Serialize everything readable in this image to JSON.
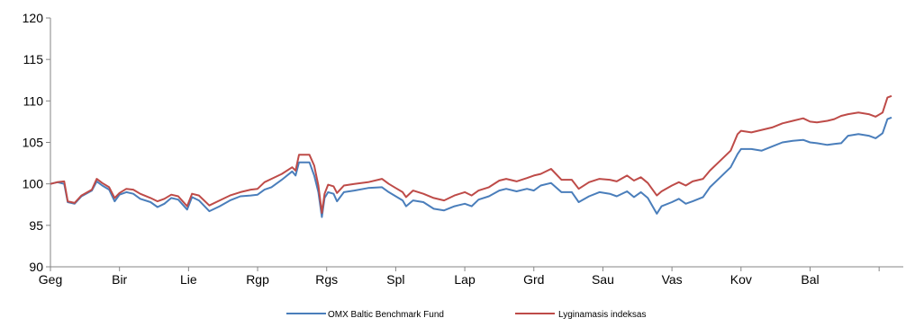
{
  "chart_data": {
    "type": "line",
    "ylim": [
      90,
      120
    ],
    "yticks": [
      90,
      95,
      100,
      105,
      110,
      115,
      120
    ],
    "categories": [
      "Geg",
      "Bir",
      "Lie",
      "Rgp",
      "Rgs",
      "Spl",
      "Lap",
      "Grd",
      "Sau",
      "Vas",
      "Kov",
      "Bal"
    ],
    "grid": false,
    "legend_position": "bottom",
    "series": [
      {
        "name": "OMX Baltic Benchmark Fund",
        "color": "#4a7ebb",
        "values": [
          [
            0.0,
            100.0
          ],
          [
            0.1,
            100.2
          ],
          [
            0.2,
            100.0
          ],
          [
            0.25,
            97.8
          ],
          [
            0.35,
            97.6
          ],
          [
            0.45,
            98.5
          ],
          [
            0.6,
            99.2
          ],
          [
            0.67,
            100.3
          ],
          [
            0.75,
            99.8
          ],
          [
            0.85,
            99.3
          ],
          [
            0.93,
            97.9
          ],
          [
            1.0,
            98.7
          ],
          [
            1.1,
            99.0
          ],
          [
            1.2,
            98.8
          ],
          [
            1.3,
            98.2
          ],
          [
            1.45,
            97.8
          ],
          [
            1.55,
            97.2
          ],
          [
            1.65,
            97.6
          ],
          [
            1.75,
            98.3
          ],
          [
            1.85,
            98.1
          ],
          [
            1.98,
            96.9
          ],
          [
            2.05,
            98.4
          ],
          [
            2.15,
            98.0
          ],
          [
            2.3,
            96.7
          ],
          [
            2.45,
            97.3
          ],
          [
            2.6,
            98.0
          ],
          [
            2.75,
            98.5
          ],
          [
            2.9,
            98.6
          ],
          [
            3.0,
            98.7
          ],
          [
            3.1,
            99.3
          ],
          [
            3.2,
            99.6
          ],
          [
            3.35,
            100.5
          ],
          [
            3.5,
            101.5
          ],
          [
            3.55,
            101.0
          ],
          [
            3.6,
            102.6
          ],
          [
            3.75,
            102.6
          ],
          [
            3.82,
            101.0
          ],
          [
            3.88,
            99.0
          ],
          [
            3.93,
            96.0
          ],
          [
            3.97,
            98.3
          ],
          [
            4.02,
            99.0
          ],
          [
            4.1,
            98.8
          ],
          [
            4.15,
            97.9
          ],
          [
            4.25,
            99.0
          ],
          [
            4.4,
            99.2
          ],
          [
            4.6,
            99.5
          ],
          [
            4.8,
            99.6
          ],
          [
            4.9,
            99.0
          ],
          [
            5.0,
            98.5
          ],
          [
            5.1,
            98.0
          ],
          [
            5.15,
            97.3
          ],
          [
            5.25,
            98.0
          ],
          [
            5.4,
            97.8
          ],
          [
            5.55,
            97.0
          ],
          [
            5.7,
            96.8
          ],
          [
            5.85,
            97.3
          ],
          [
            6.0,
            97.6
          ],
          [
            6.1,
            97.3
          ],
          [
            6.2,
            98.1
          ],
          [
            6.35,
            98.5
          ],
          [
            6.5,
            99.2
          ],
          [
            6.6,
            99.4
          ],
          [
            6.75,
            99.1
          ],
          [
            6.9,
            99.4
          ],
          [
            7.0,
            99.2
          ],
          [
            7.1,
            99.8
          ],
          [
            7.25,
            100.1
          ],
          [
            7.4,
            99.0
          ],
          [
            7.55,
            99.0
          ],
          [
            7.65,
            97.8
          ],
          [
            7.8,
            98.5
          ],
          [
            7.95,
            99.0
          ],
          [
            8.1,
            98.8
          ],
          [
            8.2,
            98.5
          ],
          [
            8.35,
            99.1
          ],
          [
            8.45,
            98.4
          ],
          [
            8.55,
            99.0
          ],
          [
            8.65,
            98.3
          ],
          [
            8.78,
            96.4
          ],
          [
            8.85,
            97.3
          ],
          [
            9.0,
            97.8
          ],
          [
            9.1,
            98.2
          ],
          [
            9.2,
            97.6
          ],
          [
            9.3,
            97.9
          ],
          [
            9.45,
            98.4
          ],
          [
            9.55,
            99.6
          ],
          [
            9.7,
            100.8
          ],
          [
            9.85,
            102.0
          ],
          [
            9.95,
            103.6
          ],
          [
            10.0,
            104.2
          ],
          [
            10.15,
            104.2
          ],
          [
            10.3,
            104.0
          ],
          [
            10.45,
            104.5
          ],
          [
            10.6,
            105.0
          ],
          [
            10.75,
            105.2
          ],
          [
            10.9,
            105.3
          ],
          [
            11.0,
            105.0
          ],
          [
            11.1,
            104.9
          ],
          [
            11.25,
            104.7
          ],
          [
            11.35,
            104.8
          ],
          [
            11.45,
            104.9
          ],
          [
            11.55,
            105.8
          ],
          [
            11.7,
            106.0
          ],
          [
            11.85,
            105.8
          ],
          [
            11.95,
            105.5
          ],
          [
            12.05,
            106.1
          ],
          [
            12.12,
            107.8
          ],
          [
            12.18,
            108.0
          ]
        ]
      },
      {
        "name": "Lyginamasis indeksas",
        "color": "#be4b48",
        "values": [
          [
            0.0,
            100.0
          ],
          [
            0.1,
            100.2
          ],
          [
            0.2,
            100.3
          ],
          [
            0.25,
            97.9
          ],
          [
            0.35,
            97.7
          ],
          [
            0.45,
            98.6
          ],
          [
            0.6,
            99.3
          ],
          [
            0.67,
            100.6
          ],
          [
            0.75,
            100.1
          ],
          [
            0.85,
            99.6
          ],
          [
            0.93,
            98.3
          ],
          [
            1.0,
            98.9
          ],
          [
            1.1,
            99.4
          ],
          [
            1.2,
            99.3
          ],
          [
            1.3,
            98.8
          ],
          [
            1.45,
            98.3
          ],
          [
            1.55,
            97.9
          ],
          [
            1.65,
            98.2
          ],
          [
            1.75,
            98.7
          ],
          [
            1.85,
            98.5
          ],
          [
            1.98,
            97.3
          ],
          [
            2.05,
            98.8
          ],
          [
            2.15,
            98.6
          ],
          [
            2.3,
            97.4
          ],
          [
            2.45,
            98.0
          ],
          [
            2.6,
            98.6
          ],
          [
            2.75,
            99.0
          ],
          [
            2.9,
            99.3
          ],
          [
            3.0,
            99.4
          ],
          [
            3.1,
            100.2
          ],
          [
            3.2,
            100.6
          ],
          [
            3.35,
            101.2
          ],
          [
            3.5,
            102.0
          ],
          [
            3.55,
            101.6
          ],
          [
            3.6,
            103.5
          ],
          [
            3.75,
            103.5
          ],
          [
            3.82,
            102.2
          ],
          [
            3.88,
            99.8
          ],
          [
            3.93,
            96.5
          ],
          [
            3.97,
            98.8
          ],
          [
            4.02,
            99.9
          ],
          [
            4.1,
            99.7
          ],
          [
            4.15,
            98.9
          ],
          [
            4.25,
            99.8
          ],
          [
            4.4,
            100.0
          ],
          [
            4.6,
            100.2
          ],
          [
            4.8,
            100.6
          ],
          [
            4.9,
            100.0
          ],
          [
            5.0,
            99.5
          ],
          [
            5.1,
            99.0
          ],
          [
            5.15,
            98.4
          ],
          [
            5.25,
            99.2
          ],
          [
            5.4,
            98.8
          ],
          [
            5.55,
            98.3
          ],
          [
            5.7,
            98.0
          ],
          [
            5.85,
            98.6
          ],
          [
            6.0,
            99.0
          ],
          [
            6.1,
            98.6
          ],
          [
            6.2,
            99.2
          ],
          [
            6.35,
            99.6
          ],
          [
            6.5,
            100.4
          ],
          [
            6.6,
            100.6
          ],
          [
            6.75,
            100.3
          ],
          [
            6.9,
            100.7
          ],
          [
            7.0,
            101.0
          ],
          [
            7.1,
            101.2
          ],
          [
            7.25,
            101.8
          ],
          [
            7.4,
            100.5
          ],
          [
            7.55,
            100.5
          ],
          [
            7.65,
            99.4
          ],
          [
            7.8,
            100.2
          ],
          [
            7.95,
            100.6
          ],
          [
            8.1,
            100.5
          ],
          [
            8.2,
            100.3
          ],
          [
            8.35,
            101.0
          ],
          [
            8.45,
            100.4
          ],
          [
            8.55,
            100.8
          ],
          [
            8.65,
            100.1
          ],
          [
            8.78,
            98.6
          ],
          [
            8.85,
            99.1
          ],
          [
            9.0,
            99.8
          ],
          [
            9.1,
            100.2
          ],
          [
            9.2,
            99.8
          ],
          [
            9.3,
            100.3
          ],
          [
            9.45,
            100.6
          ],
          [
            9.55,
            101.6
          ],
          [
            9.7,
            102.8
          ],
          [
            9.85,
            104.0
          ],
          [
            9.95,
            106.0
          ],
          [
            10.0,
            106.4
          ],
          [
            10.15,
            106.2
          ],
          [
            10.3,
            106.5
          ],
          [
            10.45,
            106.8
          ],
          [
            10.6,
            107.3
          ],
          [
            10.75,
            107.6
          ],
          [
            10.9,
            107.9
          ],
          [
            11.0,
            107.5
          ],
          [
            11.1,
            107.4
          ],
          [
            11.25,
            107.6
          ],
          [
            11.35,
            107.8
          ],
          [
            11.45,
            108.2
          ],
          [
            11.55,
            108.4
          ],
          [
            11.7,
            108.6
          ],
          [
            11.85,
            108.4
          ],
          [
            11.95,
            108.1
          ],
          [
            12.05,
            108.6
          ],
          [
            12.12,
            110.4
          ],
          [
            12.18,
            110.6
          ]
        ]
      }
    ]
  }
}
